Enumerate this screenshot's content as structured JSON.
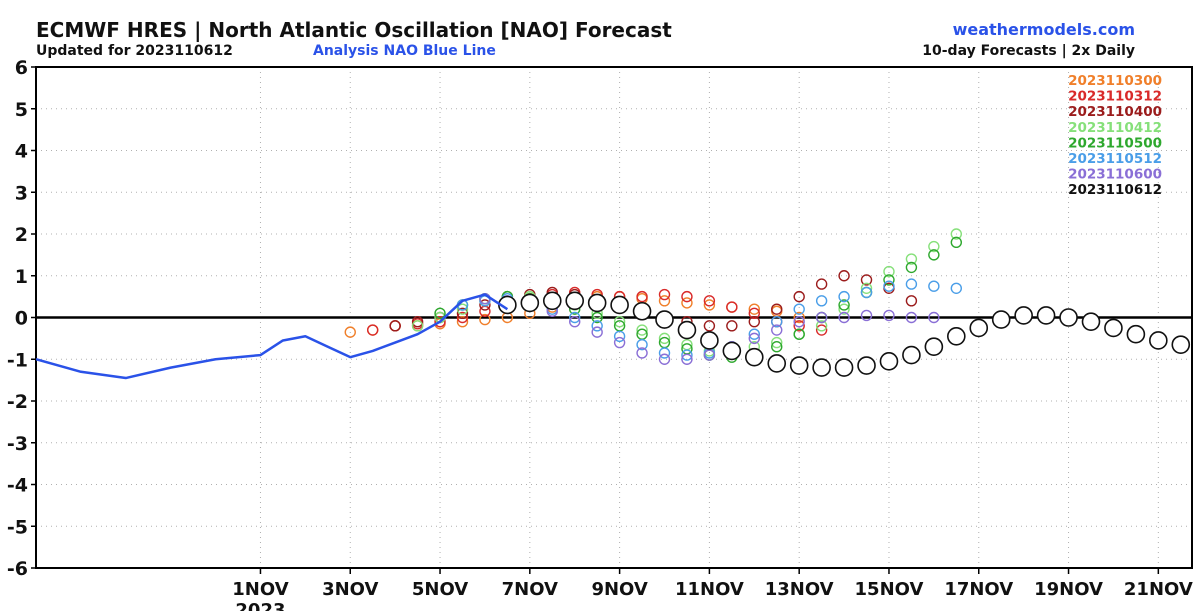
{
  "header": {
    "title": "ECMWF HRES | North Atlantic Oscillation [NAO] Forecast",
    "updated": "Updated for 2023110612",
    "analysis_label": "Analysis NAO Blue Line",
    "site": "weathermodels.com",
    "frequency": "10-day Forecasts | 2x Daily"
  },
  "chart_data": {
    "type": "line",
    "title": "ECMWF HRES | North Atlantic Oscillation [NAO] Forecast",
    "xlabel": "",
    "ylabel": "",
    "ylim": [
      -6,
      6
    ],
    "xlim": [
      "2023-10-27T00",
      "2023-11-21T18"
    ],
    "x_ticks": [
      {
        "date": "2023-11-01",
        "label": "1NOV",
        "sublabel": "2023"
      },
      {
        "date": "2023-11-03",
        "label": "3NOV"
      },
      {
        "date": "2023-11-05",
        "label": "5NOV"
      },
      {
        "date": "2023-11-07",
        "label": "7NOV"
      },
      {
        "date": "2023-11-09",
        "label": "9NOV"
      },
      {
        "date": "2023-11-11",
        "label": "11NOV"
      },
      {
        "date": "2023-11-13",
        "label": "13NOV"
      },
      {
        "date": "2023-11-15",
        "label": "15NOV"
      },
      {
        "date": "2023-11-17",
        "label": "17NOV"
      },
      {
        "date": "2023-11-19",
        "label": "19NOV"
      },
      {
        "date": "2023-11-21",
        "label": "21NOV"
      }
    ],
    "y_ticks": [
      -6,
      -5,
      -4,
      -3,
      -2,
      -1,
      0,
      1,
      2,
      3,
      4,
      5,
      6
    ],
    "grid": true,
    "legend": "top-right",
    "analysis": {
      "name": "Analysis NAO",
      "color": "#2a52e8",
      "x": [
        "2023-10-27T00",
        "2023-10-28T00",
        "2023-10-29T00",
        "2023-10-30T00",
        "2023-10-31T00",
        "2023-11-01T00",
        "2023-11-01T12",
        "2023-11-02T00",
        "2023-11-02T12",
        "2023-11-03T00",
        "2023-11-03T12",
        "2023-11-04T00",
        "2023-11-04T12",
        "2023-11-05T00",
        "2023-11-05T12",
        "2023-11-06T00",
        "2023-11-06T12"
      ],
      "y": [
        -1.0,
        -1.3,
        -1.45,
        -1.2,
        -1.0,
        -0.9,
        -0.55,
        -0.45,
        -0.7,
        -0.95,
        -0.8,
        -0.6,
        -0.4,
        -0.1,
        0.4,
        0.55,
        0.2
      ]
    },
    "series": [
      {
        "name": "2023110300",
        "color": "#f07f2a",
        "start": "2023-11-03T00",
        "y": [
          -0.35,
          -0.3,
          -0.2,
          -0.2,
          -0.15,
          -0.1,
          -0.05,
          0.0,
          0.1,
          0.25,
          0.4,
          0.5,
          0.5,
          0.45,
          0.4,
          0.35,
          0.3,
          0.25,
          0.2,
          0.15,
          0.0
        ]
      },
      {
        "name": "2023110312",
        "color": "#d92a2a",
        "start": "2023-11-03T12",
        "y": [
          -0.3,
          -0.2,
          -0.15,
          -0.1,
          0.0,
          0.15,
          0.3,
          0.45,
          0.55,
          0.6,
          0.55,
          0.5,
          0.5,
          0.55,
          0.5,
          0.4,
          0.25,
          0.1,
          -0.1,
          -0.2,
          -0.3
        ]
      },
      {
        "name": "2023110400",
        "color": "#9b1c1c",
        "start": "2023-11-04T00",
        "y": [
          -0.2,
          -0.1,
          0.0,
          0.1,
          0.3,
          0.5,
          0.55,
          0.6,
          0.55,
          0.4,
          0.3,
          0.1,
          0.0,
          -0.1,
          -0.2,
          -0.2,
          -0.1,
          0.2,
          0.5,
          0.8,
          1.0,
          0.9,
          0.7,
          0.4
        ]
      },
      {
        "name": "2023110412",
        "color": "#86e07a",
        "start": "2023-11-04T12",
        "y": [
          -0.2,
          0.0,
          0.2,
          0.4,
          0.5,
          0.5,
          0.4,
          0.3,
          0.1,
          -0.1,
          -0.3,
          -0.5,
          -0.65,
          -0.8,
          -0.8,
          -0.7,
          -0.6,
          -0.4,
          -0.2,
          0.2,
          0.7,
          1.1,
          1.4,
          1.7,
          2.0
        ]
      },
      {
        "name": "2023110500",
        "color": "#2ea82e",
        "start": "2023-11-05T00",
        "y": [
          0.1,
          0.3,
          0.45,
          0.5,
          0.45,
          0.35,
          0.2,
          0.0,
          -0.2,
          -0.4,
          -0.6,
          -0.75,
          -0.9,
          -0.95,
          -0.9,
          -0.7,
          -0.4,
          0.0,
          0.3,
          0.6,
          0.9,
          1.2,
          1.5,
          1.8
        ]
      },
      {
        "name": "2023110512",
        "color": "#4a9ee8",
        "start": "2023-11-05T12",
        "y": [
          0.3,
          0.4,
          0.45,
          0.35,
          0.2,
          0.0,
          -0.2,
          -0.45,
          -0.65,
          -0.85,
          -0.9,
          -0.85,
          -0.7,
          -0.4,
          -0.1,
          0.2,
          0.4,
          0.5,
          0.6,
          0.75,
          0.8,
          0.75,
          0.7
        ]
      },
      {
        "name": "2023110600",
        "color": "#8a6fd6",
        "start": "2023-11-06T00",
        "y": [
          0.45,
          0.4,
          0.3,
          0.15,
          -0.1,
          -0.35,
          -0.6,
          -0.85,
          -1.0,
          -1.0,
          -0.9,
          -0.7,
          -0.5,
          -0.3,
          -0.1,
          0.0,
          0.0,
          0.05,
          0.05,
          0.0,
          0.0
        ]
      },
      {
        "name": "2023110612",
        "color": "#111111",
        "start": "2023-11-06T12",
        "y": [
          0.3,
          0.35,
          0.4,
          0.4,
          0.35,
          0.3,
          0.15,
          -0.05,
          -0.3,
          -0.55,
          -0.8,
          -0.95,
          -1.1,
          -1.15,
          -1.2,
          -1.2,
          -1.15,
          -1.05,
          -0.9,
          -0.7,
          -0.45,
          -0.25,
          -0.05,
          0.05,
          0.05,
          0.0,
          -0.1,
          -0.25,
          -0.4,
          -0.55,
          -0.65,
          -0.65,
          -0.65
        ]
      }
    ]
  }
}
